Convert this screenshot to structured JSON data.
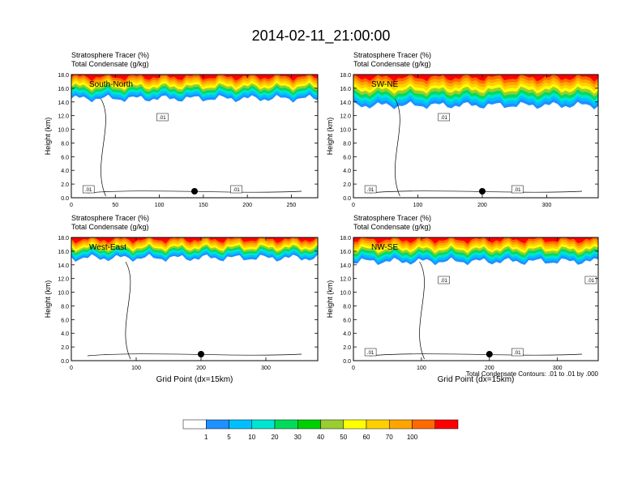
{
  "title": "2014-02-11_21:00:00",
  "footnote": "Total Condensate Contours: .01 to .01 by .000",
  "colorbar": {
    "labels": [
      "1",
      "5",
      "10",
      "20",
      "30",
      "40",
      "50",
      "60",
      "70",
      "100"
    ],
    "colors": [
      "#ffffff",
      "#1e90ff",
      "#00bfff",
      "#00e5d0",
      "#00dc5a",
      "#00d000",
      "#9acd32",
      "#ffff00",
      "#ffd000",
      "#ffa500",
      "#ff6a00",
      "#ff0000"
    ]
  },
  "chart_data": [
    {
      "type": "heatmap",
      "cross_section": "South-North",
      "subtitle1": "Stratosphere Tracer   (%)",
      "subtitle2": "Total Condensate   (g/kg)",
      "xlabel": "",
      "ylabel": "Height (km)",
      "xlim": [
        0,
        280
      ],
      "ylim": [
        0,
        18
      ],
      "xticks": [
        "0",
        "50",
        "100",
        "150",
        "200",
        "250"
      ],
      "yticks": [
        "0.0",
        "2.0",
        "4.0",
        "6.0",
        "8.0",
        "10.0",
        "12.0",
        "14.0",
        "16.0",
        "18.0"
      ],
      "marker_x": 140,
      "contour_labels": [
        ".01",
        ".01",
        ".01"
      ],
      "tracer_layer": {
        "base_km": 14.5,
        "top_km": 18.0,
        "max_pct": 100
      }
    },
    {
      "type": "heatmap",
      "cross_section": "SW-NE",
      "subtitle1": "Stratosphere Tracer   (%)",
      "subtitle2": "Total Condensate   (g/kg)",
      "xlabel": "",
      "ylabel": "Height (km)",
      "xlim": [
        0,
        380
      ],
      "ylim": [
        0,
        18
      ],
      "xticks": [
        "0",
        "100",
        "200",
        "300"
      ],
      "yticks": [
        "0.0",
        "2.0",
        "4.0",
        "6.0",
        "8.0",
        "10.0",
        "12.0",
        "14.0",
        "16.0",
        "18.0"
      ],
      "marker_x": 200,
      "contour_labels": [
        ".01",
        ".01",
        ".01"
      ],
      "tracer_layer": {
        "base_km": 13.5,
        "top_km": 18.0,
        "max_pct": 100
      }
    },
    {
      "type": "heatmap",
      "cross_section": "West-East",
      "subtitle1": "Stratosphere Tracer   (%)",
      "subtitle2": "Total Condensate   (g/kg)",
      "xlabel": "Grid Point (dx=15km)",
      "ylabel": "Height (km)",
      "xlim": [
        0,
        380
      ],
      "ylim": [
        0,
        18
      ],
      "xticks": [
        "0",
        "100",
        "200",
        "300"
      ],
      "yticks": [
        "0.0",
        "2.0",
        "4.0",
        "6.0",
        "8.0",
        "10.0",
        "12.0",
        "14.0",
        "16.0",
        "18.0"
      ],
      "marker_x": 200,
      "contour_labels": [],
      "tracer_layer": {
        "base_km": 15.0,
        "top_km": 18.0,
        "max_pct": 100
      }
    },
    {
      "type": "heatmap",
      "cross_section": "NW-SE",
      "subtitle1": "Stratosphere Tracer   (%)",
      "subtitle2": "Total Condensate   (g/kg)",
      "xlabel": "Grid Point (dx=15km)",
      "ylabel": "Height (km)",
      "xlim": [
        0,
        360
      ],
      "ylim": [
        0,
        18
      ],
      "xticks": [
        "0",
        "100",
        "200",
        "300"
      ],
      "yticks": [
        "0.0",
        "2.0",
        "4.0",
        "6.0",
        "8.0",
        "10.0",
        "12.0",
        "14.0",
        "16.0",
        "18.0"
      ],
      "marker_x": 200,
      "contour_labels": [
        ".01",
        ".01",
        ".01",
        ".01"
      ],
      "tracer_layer": {
        "base_km": 14.5,
        "top_km": 18.0,
        "max_pct": 100
      }
    }
  ]
}
